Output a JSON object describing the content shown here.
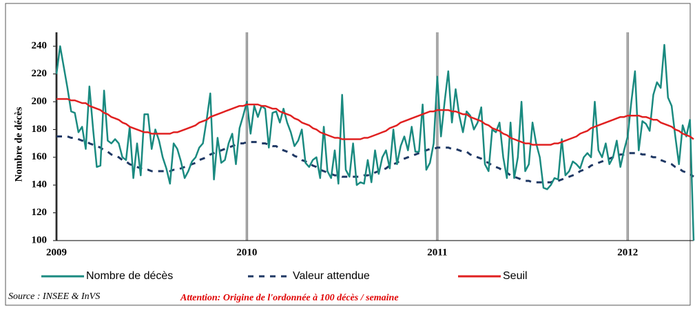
{
  "chart_data": {
    "type": "line",
    "ylabel": "Nombre de décès",
    "source": "Source : INSEE & InVS",
    "note": "Attention: Origine de l'ordonnée à 100 décès / semaine",
    "xlim": [
      0,
      174
    ],
    "xticks": [
      {
        "value": 0,
        "label": "2009"
      },
      {
        "value": 52,
        "label": "2010"
      },
      {
        "value": 104,
        "label": "2011"
      },
      {
        "value": 156,
        "label": "2012"
      }
    ],
    "ylim": [
      100,
      250
    ],
    "yticks": [
      100,
      120,
      140,
      160,
      180,
      200,
      220,
      240
    ],
    "series": [
      {
        "name": "Nombre de décès",
        "color": "#1a8a80",
        "style": "solid",
        "values": [
          220,
          240,
          225,
          210,
          193,
          192,
          178,
          182,
          166,
          211,
          180,
          153,
          154,
          208,
          172,
          170,
          173,
          170,
          160,
          158,
          182,
          145,
          170,
          147,
          191,
          191,
          166,
          180,
          172,
          160,
          152,
          141,
          170,
          166,
          157,
          145,
          150,
          157,
          160,
          167,
          170,
          187,
          206,
          144,
          174,
          156,
          158,
          170,
          177,
          155,
          181,
          190,
          200,
          177,
          197,
          189,
          197,
          195,
          167,
          192,
          193,
          185,
          195,
          185,
          178,
          168,
          172,
          180,
          156,
          153,
          158,
          160,
          145,
          182,
          150,
          145,
          165,
          141,
          205,
          151,
          146,
          170,
          140,
          142,
          141,
          158,
          142,
          165,
          148,
          160,
          165,
          152,
          180,
          155,
          168,
          175,
          165,
          182,
          164,
          164,
          198,
          151,
          156,
          170,
          218,
          175,
          200,
          222,
          185,
          209,
          190,
          178,
          193,
          190,
          180,
          185,
          196,
          155,
          150,
          180,
          178,
          185,
          160,
          145,
          185,
          145,
          160,
          200,
          150,
          155,
          185,
          170,
          160,
          138,
          137,
          140,
          145,
          144,
          173,
          147,
          150,
          157,
          155,
          152,
          160,
          163,
          160,
          200,
          165,
          160,
          170,
          155,
          160,
          172,
          153,
          165,
          175,
          200,
          222,
          165,
          186,
          184,
          179,
          205,
          214,
          210,
          241,
          203,
          197,
          175,
          155,
          183,
          175,
          187,
          100
        ]
      },
      {
        "name": "Valeur attendue",
        "color": "#1f3864",
        "style": "dashed",
        "values": [
          175,
          175,
          175,
          175,
          174,
          174,
          173,
          172,
          172,
          170,
          169,
          168,
          167,
          165,
          164,
          162,
          161,
          160,
          158,
          157,
          155,
          154,
          153,
          152,
          151,
          151,
          150,
          150,
          150,
          150,
          150,
          150,
          151,
          151,
          152,
          153,
          154,
          155,
          156,
          158,
          159,
          160,
          162,
          163,
          164,
          165,
          166,
          167,
          168,
          169,
          170,
          170,
          171,
          171,
          171,
          171,
          170,
          170,
          169,
          168,
          168,
          166,
          165,
          164,
          163,
          161,
          160,
          158,
          157,
          156,
          154,
          153,
          151,
          150,
          149,
          148,
          147,
          147,
          146,
          146,
          146,
          146,
          146,
          146,
          147,
          147,
          148,
          149,
          150,
          151,
          152,
          154,
          155,
          156,
          158,
          159,
          160,
          161,
          162,
          163,
          164,
          165,
          166,
          166,
          167,
          167,
          167,
          167,
          166,
          166,
          165,
          164,
          164,
          162,
          161,
          160,
          159,
          157,
          156,
          154,
          153,
          152,
          150,
          149,
          147,
          146,
          145,
          144,
          143,
          143,
          142,
          142,
          142,
          142,
          142,
          142,
          143,
          143,
          144,
          145,
          146,
          147,
          148,
          150,
          151,
          152,
          154,
          155,
          156,
          157,
          158,
          159,
          160,
          161,
          162,
          162,
          163,
          163,
          163,
          163,
          162,
          162,
          161,
          160,
          160,
          158,
          157,
          156,
          155,
          153,
          152,
          150,
          149,
          148,
          146
        ]
      },
      {
        "name": "Seuil",
        "color": "#e02020",
        "style": "solid",
        "values": [
          202,
          202,
          202,
          202,
          201,
          201,
          200,
          199,
          199,
          197,
          196,
          195,
          194,
          192,
          191,
          189,
          188,
          187,
          185,
          184,
          182,
          181,
          180,
          179,
          178,
          178,
          177,
          177,
          177,
          177,
          177,
          177,
          178,
          178,
          179,
          180,
          181,
          182,
          183,
          185,
          186,
          187,
          189,
          190,
          191,
          192,
          193,
          194,
          195,
          196,
          197,
          197,
          198,
          198,
          198,
          198,
          197,
          197,
          196,
          195,
          195,
          193,
          192,
          191,
          190,
          188,
          187,
          185,
          184,
          183,
          181,
          180,
          178,
          177,
          176,
          175,
          174,
          174,
          173,
          173,
          173,
          173,
          173,
          173,
          174,
          174,
          175,
          176,
          177,
          178,
          179,
          181,
          182,
          183,
          185,
          186,
          187,
          188,
          189,
          190,
          191,
          192,
          193,
          193,
          194,
          194,
          194,
          194,
          193,
          193,
          192,
          191,
          191,
          189,
          188,
          187,
          186,
          184,
          183,
          181,
          180,
          179,
          177,
          176,
          174,
          173,
          172,
          171,
          170,
          170,
          169,
          169,
          169,
          169,
          169,
          169,
          170,
          170,
          171,
          172,
          173,
          174,
          175,
          177,
          178,
          179,
          181,
          182,
          183,
          184,
          185,
          186,
          187,
          188,
          189,
          189,
          190,
          190,
          190,
          190,
          189,
          189,
          188,
          187,
          187,
          185,
          184,
          183,
          182,
          180,
          179,
          177,
          176,
          175,
          173
        ]
      }
    ]
  }
}
